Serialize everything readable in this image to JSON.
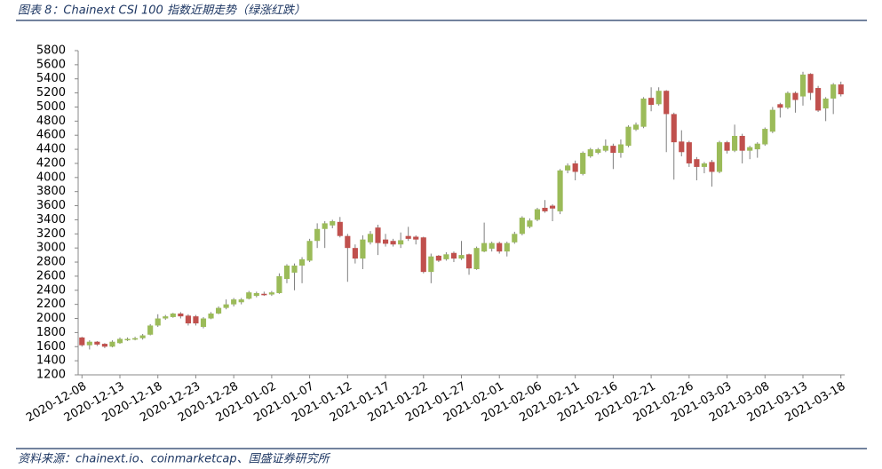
{
  "chart_data": {
    "type": "candlestick",
    "title": "图表 8：Chainext CSI 100 指数近期走势（绿涨红跌）",
    "source": "资料来源：chainext.io、coinmarketcap、国盛证券研究所",
    "up_color": "#9bbb59",
    "down_color": "#c0504d",
    "wick_color": "#7f7f7f",
    "categories": [
      "2020-12-08",
      null,
      null,
      null,
      null,
      "2020-12-13",
      null,
      null,
      null,
      null,
      "2020-12-18",
      null,
      null,
      null,
      null,
      "2020-12-23",
      null,
      null,
      null,
      null,
      "2020-12-28",
      null,
      null,
      null,
      null,
      "2021-01-02",
      null,
      null,
      null,
      null,
      "2021-01-07",
      null,
      null,
      null,
      null,
      "2021-01-12",
      null,
      null,
      null,
      null,
      "2021-01-17",
      null,
      null,
      null,
      null,
      "2021-01-22",
      null,
      null,
      null,
      null,
      "2021-01-27",
      null,
      null,
      null,
      null,
      "2021-02-01",
      null,
      null,
      null,
      null,
      "2021-02-06",
      null,
      null,
      null,
      null,
      "2021-02-11",
      null,
      null,
      null,
      null,
      "2021-02-16",
      null,
      null,
      null,
      null,
      "2021-02-21",
      null,
      null,
      null,
      null,
      "2021-02-26",
      null,
      null,
      null,
      null,
      "2021-03-03",
      null,
      null,
      null,
      null,
      "2021-03-08",
      null,
      null,
      null,
      null,
      "2021-03-13",
      null,
      null,
      null,
      null,
      "2021-03-18"
    ],
    "open": [
      1730,
      1620,
      1670,
      1640,
      1600,
      1650,
      1690,
      1700,
      1720,
      1770,
      1900,
      2000,
      2020,
      2070,
      2040,
      2030,
      1880,
      2000,
      2070,
      2150,
      2200,
      2230,
      2280,
      2320,
      2350,
      2340,
      2360,
      2560,
      2650,
      2750,
      2820,
      3100,
      3270,
      3320,
      3370,
      3170,
      3000,
      2850,
      3080,
      3290,
      3120,
      3100,
      3050,
      3170,
      3160,
      3150,
      2660,
      2890,
      2840,
      2930,
      2850,
      2910,
      2700,
      2950,
      2990,
      3070,
      2950,
      3080,
      3200,
      3300,
      3400,
      3570,
      3600,
      3520,
      4100,
      4200,
      4050,
      4300,
      4350,
      4380,
      4450,
      4350,
      4450,
      4680,
      4720,
      5130,
      5040,
      5230,
      4900,
      4510,
      4500,
      4260,
      4150,
      4220,
      4080,
      4500,
      4380,
      4590,
      4380,
      4400,
      4470,
      4650,
      5040,
      4990,
      5200,
      5150,
      5470,
      5270,
      4980,
      5120,
      5320
    ],
    "high": [
      1740,
      1690,
      1680,
      1650,
      1690,
      1730,
      1730,
      1740,
      1780,
      1920,
      2060,
      2050,
      2080,
      2090,
      2060,
      2050,
      2020,
      2090,
      2170,
      2270,
      2290,
      2290,
      2390,
      2380,
      2380,
      2390,
      2640,
      2770,
      2780,
      2870,
      3130,
      3350,
      3380,
      3400,
      3440,
      3200,
      3050,
      3180,
      3240,
      3330,
      3200,
      3130,
      3220,
      3300,
      3180,
      3160,
      2920,
      2900,
      2940,
      2950,
      3100,
      2920,
      3020,
      3360,
      3090,
      3090,
      3090,
      3230,
      3450,
      3420,
      3570,
      3680,
      3620,
      4120,
      4200,
      4240,
      4370,
      4420,
      4420,
      4540,
      4480,
      4540,
      4740,
      4780,
      5140,
      5280,
      5280,
      5240,
      4920,
      4670,
      4520,
      4290,
      4220,
      4250,
      4520,
      4520,
      4750,
      4620,
      4450,
      4500,
      4710,
      5000,
      5060,
      5220,
      5220,
      5500,
      5480,
      5300,
      5140,
      5340,
      5360
    ],
    "low": [
      1600,
      1560,
      1610,
      1580,
      1590,
      1640,
      1680,
      1690,
      1700,
      1760,
      1880,
      1980,
      2010,
      2000,
      1900,
      1900,
      1860,
      1990,
      2060,
      2130,
      2170,
      2200,
      2270,
      2300,
      2320,
      2320,
      2350,
      2500,
      2400,
      2500,
      2800,
      3000,
      3000,
      3280,
      3150,
      2520,
      2780,
      2700,
      3050,
      2900,
      3020,
      3020,
      3000,
      3100,
      3050,
      2640,
      2500,
      2800,
      2820,
      2800,
      2830,
      2620,
      2690,
      2940,
      2950,
      2920,
      2880,
      3060,
      3180,
      3280,
      3380,
      3500,
      3380,
      3480,
      4060,
      3960,
      4030,
      4280,
      4330,
      4360,
      4120,
      4280,
      4430,
      4660,
      4700,
      4940,
      5020,
      4360,
      3970,
      4300,
      4150,
      3960,
      4060,
      3870,
      4060,
      4340,
      4360,
      4200,
      4260,
      4280,
      4450,
      4630,
      4850,
      4970,
      4920,
      5020,
      5100,
      4930,
      4800,
      4900,
      5150
    ],
    "close": [
      1620,
      1670,
      1630,
      1600,
      1670,
      1710,
      1710,
      1720,
      1760,
      1900,
      2000,
      2030,
      2070,
      2030,
      1930,
      1930,
      2000,
      2070,
      2150,
      2200,
      2270,
      2270,
      2370,
      2360,
      2330,
      2370,
      2600,
      2750,
      2750,
      2840,
      3100,
      3270,
      3350,
      3380,
      3170,
      3000,
      2850,
      3120,
      3200,
      3070,
      3060,
      3050,
      3110,
      3130,
      3120,
      2660,
      2880,
      2820,
      2910,
      2850,
      2900,
      2710,
      3000,
      3070,
      3070,
      2950,
      3070,
      3200,
      3430,
      3390,
      3550,
      3520,
      3560,
      4100,
      4170,
      4080,
      4350,
      4400,
      4400,
      4450,
      4350,
      4470,
      4720,
      4750,
      5120,
      5030,
      5230,
      4900,
      4500,
      4360,
      4200,
      4150,
      4200,
      4080,
      4500,
      4380,
      4590,
      4380,
      4430,
      4480,
      4690,
      4960,
      4990,
      5200,
      5100,
      5460,
      5200,
      4950,
      5120,
      5320,
      5180
    ],
    "ylim": [
      1200,
      5800
    ],
    "yticks": [
      1200,
      1400,
      1600,
      1800,
      2000,
      2200,
      2400,
      2600,
      2800,
      3000,
      3200,
      3400,
      3600,
      3800,
      4000,
      4200,
      4400,
      4600,
      4800,
      5000,
      5200,
      5400,
      5600,
      5800
    ]
  }
}
